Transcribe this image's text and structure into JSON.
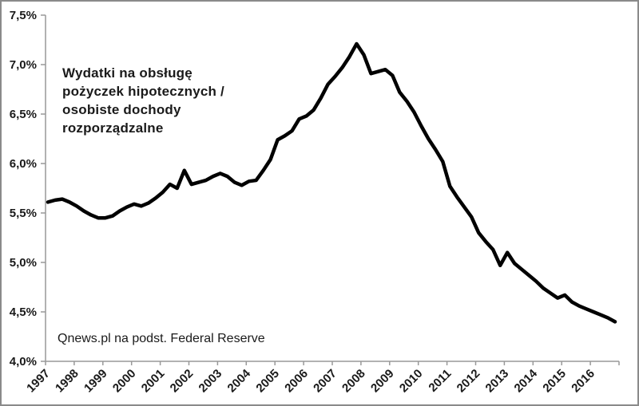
{
  "chart_data": {
    "type": "line",
    "title_lines": [
      "Wydatki na obsługę",
      "pożyczek hipotecznych /",
      "osobiste dochody",
      "rozporządzalne"
    ],
    "source_note": "Qnews.pl na podst. Federal Reserve",
    "x_tick_labels": [
      "1997",
      "1998",
      "1999",
      "2000",
      "2001",
      "2002",
      "2003",
      "2004",
      "2005",
      "2006",
      "2007",
      "2008",
      "2009",
      "2010",
      "2011",
      "2012",
      "2013",
      "2014",
      "2015",
      "2016"
    ],
    "y_tick_labels": [
      "7,5%",
      "7,0%",
      "6,5%",
      "6,0%",
      "5,5%",
      "5,0%",
      "4,5%",
      "4,0%"
    ],
    "y_tick_values": [
      7.5,
      7.0,
      6.5,
      6.0,
      5.5,
      5.0,
      4.5,
      4.0
    ],
    "ylim": [
      4.0,
      7.5
    ],
    "xlabel": "",
    "ylabel": "",
    "frequency": "quarterly",
    "grid": "off",
    "legend": "none",
    "series": [
      {
        "name": "Wydatki na obsługę pożyczek hipotecznych / osobiste dochody rozporządzalne (%)",
        "start": "1997Q1",
        "end": "2016Q4",
        "values": [
          5.61,
          5.63,
          5.64,
          5.61,
          5.57,
          5.52,
          5.48,
          5.45,
          5.45,
          5.47,
          5.52,
          5.56,
          5.59,
          5.57,
          5.6,
          5.65,
          5.71,
          5.79,
          5.75,
          5.93,
          5.79,
          5.81,
          5.83,
          5.87,
          5.9,
          5.87,
          5.81,
          5.78,
          5.82,
          5.83,
          5.93,
          6.04,
          6.24,
          6.28,
          6.33,
          6.45,
          6.48,
          6.54,
          6.66,
          6.8,
          6.88,
          6.97,
          7.08,
          7.21,
          7.1,
          6.91,
          6.93,
          6.95,
          6.89,
          6.72,
          6.63,
          6.52,
          6.38,
          6.25,
          6.14,
          6.02,
          5.77,
          5.66,
          5.56,
          5.46,
          5.3,
          5.21,
          5.13,
          4.97,
          5.1,
          4.99,
          4.93,
          4.87,
          4.81,
          4.74,
          4.69,
          4.64,
          4.67,
          4.6,
          4.56,
          4.53,
          4.5,
          4.47,
          4.44,
          4.4
        ]
      }
    ],
    "colors": {
      "line": "#000000",
      "axis": "#999999",
      "text": "#1a1a1a",
      "background": "#ffffff",
      "border": "#8a8a8a"
    }
  }
}
